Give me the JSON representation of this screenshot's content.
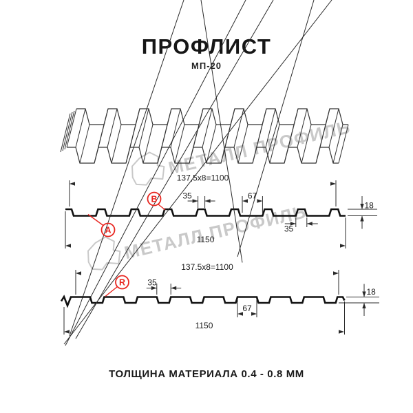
{
  "page": {
    "title": "ПРОФЛИСТ",
    "subtitle": "МП-20",
    "footer": "ТОЛЩИНА МАТЕРИАЛА 0.4 - 0.8 ММ"
  },
  "watermark": {
    "text": "МЕТАЛЛ ПРОФИЛЬ",
    "color": "#c9c9c9"
  },
  "colors": {
    "red": "#e8251f",
    "line": "#1a1a1a",
    "dim": "#2a2a2a"
  },
  "front_view": {
    "label_a": "A",
    "label_b": "B",
    "dim_pitch": "137,5x8=1100",
    "dim_rib_top": "35",
    "dim_flute": "67",
    "dim_height": "18",
    "dim_rib_bottom": "35",
    "dim_width": "1150"
  },
  "back_view": {
    "label_r": "R",
    "dim_pitch": "137.5x8=1100",
    "dim_rib": "35",
    "dim_flute": "67",
    "dim_height": "18",
    "dim_width": "1150"
  }
}
